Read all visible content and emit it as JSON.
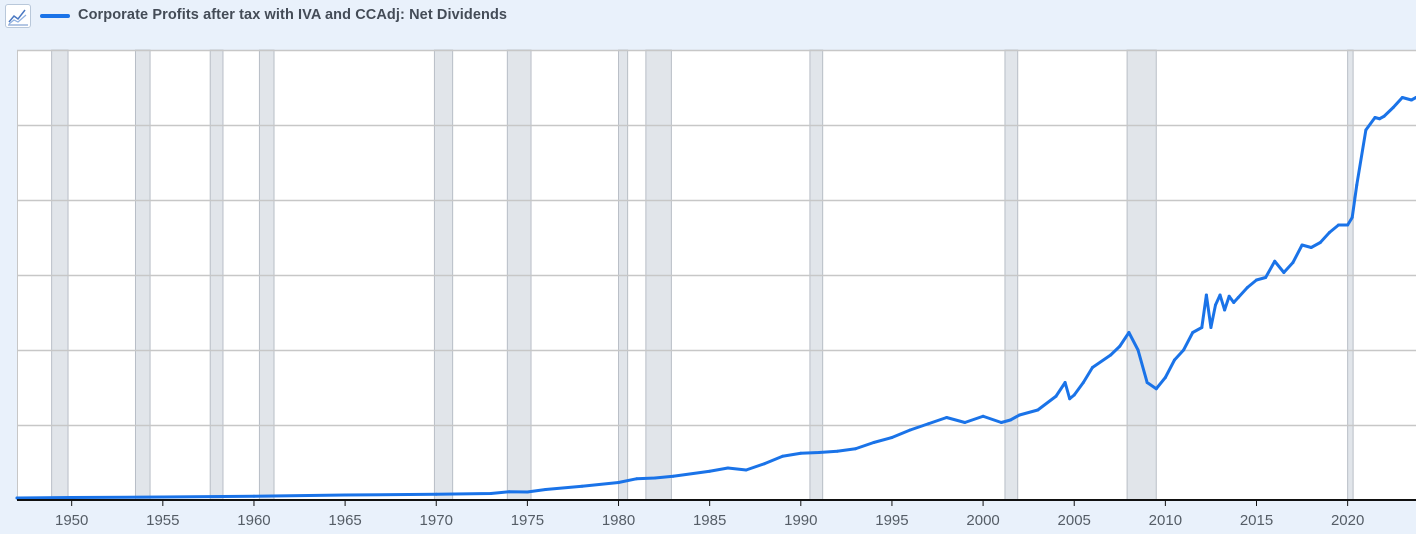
{
  "legend": {
    "icon": "line-chart-icon",
    "series_label": "Corporate Profits after tax with IVA and CCAdj: Net Dividends"
  },
  "colors": {
    "series": "#1a73e8",
    "recession": "#e1e5ea",
    "recession_edge": "#b8bec6",
    "grid": "#c7c7c7",
    "axis": "#111111"
  },
  "chart_data": {
    "type": "line",
    "title": "Corporate Profits after tax with IVA and CCAdj: Net Dividends",
    "xlabel": "",
    "ylabel": "",
    "xlim": [
      1947.0,
      2023.75
    ],
    "ylim": [
      0,
      1800
    ],
    "y_gridlines": [
      0,
      300,
      600,
      900,
      1200,
      1500,
      1800
    ],
    "y_tick_labels_visible": false,
    "x_ticks": [
      1950,
      1955,
      1960,
      1965,
      1970,
      1975,
      1980,
      1985,
      1990,
      1995,
      2000,
      2005,
      2010,
      2015,
      2020
    ],
    "x_tick_labels": [
      "1950",
      "1955",
      "1960",
      "1965",
      "1970",
      "1975",
      "1980",
      "1985",
      "1990",
      "1995",
      "2000",
      "2005",
      "2010",
      "2015",
      "2020"
    ],
    "recessions": [
      [
        1948.9,
        1949.8
      ],
      [
        1953.5,
        1954.3
      ],
      [
        1957.6,
        1958.3
      ],
      [
        1960.3,
        1961.1
      ],
      [
        1969.9,
        1970.9
      ],
      [
        1973.9,
        1975.2
      ],
      [
        1980.0,
        1980.5
      ],
      [
        1981.5,
        1982.9
      ],
      [
        1990.5,
        1991.2
      ],
      [
        2001.2,
        2001.9
      ],
      [
        2007.9,
        2009.5
      ],
      [
        2020.0,
        2020.3
      ]
    ],
    "series": [
      {
        "name": "Corporate Profits after tax with IVA and CCAdj: Net Dividends",
        "x": [
          1947.0,
          1950.0,
          1955.0,
          1960.0,
          1965.0,
          1970.0,
          1973.0,
          1974.0,
          1975.0,
          1976.0,
          1978.0,
          1980.0,
          1981.0,
          1982.0,
          1983.0,
          1985.0,
          1986.0,
          1987.0,
          1988.0,
          1989.0,
          1990.0,
          1991.0,
          1992.0,
          1993.0,
          1994.0,
          1995.0,
          1996.0,
          1997.0,
          1998.0,
          1999.0,
          2000.0,
          2001.0,
          2001.5,
          2002.0,
          2003.0,
          2004.0,
          2004.5,
          2004.75,
          2005.0,
          2005.5,
          2006.0,
          2007.0,
          2007.5,
          2008.0,
          2008.5,
          2009.0,
          2009.5,
          2010.0,
          2010.5,
          2011.0,
          2011.5,
          2012.0,
          2012.25,
          2012.5,
          2012.75,
          2013.0,
          2013.25,
          2013.5,
          2013.75,
          2014.0,
          2014.5,
          2015.0,
          2015.5,
          2016.0,
          2016.5,
          2017.0,
          2017.5,
          2018.0,
          2018.5,
          2019.0,
          2019.5,
          2020.0,
          2020.25,
          2020.5,
          2021.0,
          2021.5,
          2021.75,
          2022.0,
          2022.5,
          2023.0,
          2023.5,
          2023.75
        ],
        "values": [
          8,
          10,
          12,
          15,
          20,
          23,
          26,
          33,
          32,
          42,
          55,
          70,
          85,
          88,
          95,
          115,
          128,
          120,
          145,
          175,
          187,
          190,
          195,
          205,
          230,
          250,
          280,
          305,
          330,
          310,
          335,
          310,
          320,
          340,
          360,
          415,
          470,
          405,
          420,
          470,
          530,
          580,
          615,
          670,
          600,
          470,
          445,
          490,
          560,
          600,
          670,
          690,
          820,
          690,
          780,
          820,
          760,
          815,
          790,
          810,
          850,
          880,
          890,
          955,
          910,
          950,
          1020,
          1010,
          1030,
          1070,
          1100,
          1100,
          1130,
          1260,
          1480,
          1530,
          1525,
          1535,
          1570,
          1610,
          1600,
          1610
        ]
      }
    ]
  }
}
